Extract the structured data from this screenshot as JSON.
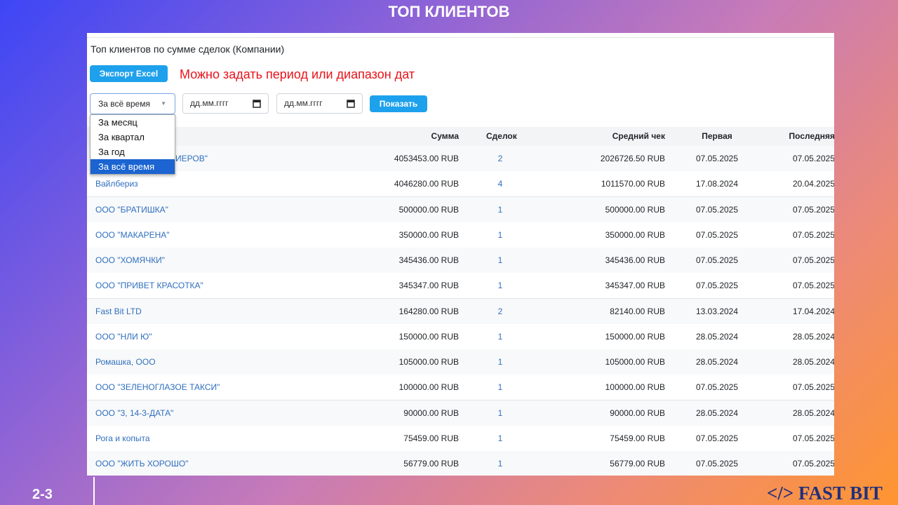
{
  "header": {
    "title": "ТОП КЛИЕНТОВ"
  },
  "panel": {
    "heading": "Топ клиентов по сумме сделок (Компании)",
    "export_button": "Экспорт Excel",
    "hint": "Можно задать период или диапазон дат",
    "period_select": "За всё время",
    "date_from": "дд.мм.гггг",
    "date_to": "дд.мм.гггг",
    "show_button": "Показать",
    "dropdown": {
      "options": [
        "За месяц",
        "За квартал",
        "За год",
        "За всё время"
      ],
      "selected": 3
    }
  },
  "table": {
    "columns": {
      "sum": "Сумма",
      "deals": "Сделок",
      "avg": "Средний чек",
      "first": "Первая",
      "last": "Последняя"
    },
    "rows": [
      {
        "name": "ИЕРОВ\"",
        "sum": "4053453.00 RUB",
        "deals": "2",
        "avg": "2026726.50 RUB",
        "first": "07.05.2025",
        "last": "07.05.2025"
      },
      {
        "name": "Вайлбериз",
        "sum": "4046280.00 RUB",
        "deals": "4",
        "avg": "1011570.00 RUB",
        "first": "17.08.2024",
        "last": "20.04.2025"
      },
      {
        "name": "ООО \"БРАТИШКА\"",
        "sum": "500000.00 RUB",
        "deals": "1",
        "avg": "500000.00 RUB",
        "first": "07.05.2025",
        "last": "07.05.2025"
      },
      {
        "name": "ООО \"МАКАРЕНА\"",
        "sum": "350000.00 RUB",
        "deals": "1",
        "avg": "350000.00 RUB",
        "first": "07.05.2025",
        "last": "07.05.2025"
      },
      {
        "name": "ООО \"ХОМЯЧКИ\"",
        "sum": "345436.00 RUB",
        "deals": "1",
        "avg": "345436.00 RUB",
        "first": "07.05.2025",
        "last": "07.05.2025"
      },
      {
        "name": "ООО \"ПРИВЕТ КРАСОТКА\"",
        "sum": "345347.00 RUB",
        "deals": "1",
        "avg": "345347.00 RUB",
        "first": "07.05.2025",
        "last": "07.05.2025"
      },
      {
        "name": "Fast Bit LTD",
        "sum": "164280.00 RUB",
        "deals": "2",
        "avg": "82140.00 RUB",
        "first": "13.03.2024",
        "last": "17.04.2024"
      },
      {
        "name": "ООО \"НЛИ Ю\"",
        "sum": "150000.00 RUB",
        "deals": "1",
        "avg": "150000.00 RUB",
        "first": "28.05.2024",
        "last": "28.05.2024"
      },
      {
        "name": "Ромашка, ООО",
        "sum": "105000.00 RUB",
        "deals": "1",
        "avg": "105000.00 RUB",
        "first": "28.05.2024",
        "last": "28.05.2024"
      },
      {
        "name": "ООО \"ЗЕЛЕНОГЛАЗОЕ ТАКСИ\"",
        "sum": "100000.00 RUB",
        "deals": "1",
        "avg": "100000.00 RUB",
        "first": "07.05.2025",
        "last": "07.05.2025"
      },
      {
        "name": "ООО \"3, 14-3-ДАТА\"",
        "sum": "90000.00 RUB",
        "deals": "1",
        "avg": "90000.00 RUB",
        "first": "28.05.2024",
        "last": "28.05.2024"
      },
      {
        "name": "Рога и копыта",
        "sum": "75459.00 RUB",
        "deals": "1",
        "avg": "75459.00 RUB",
        "first": "07.05.2025",
        "last": "07.05.2025"
      },
      {
        "name": "ООО \"ЖИТЬ ХОРОШО\"",
        "sum": "56779.00 RUB",
        "deals": "1",
        "avg": "56779.00 RUB",
        "first": "07.05.2025",
        "last": "07.05.2025"
      }
    ]
  },
  "footer": {
    "page": "2-3",
    "brand": "</> FAST BIT"
  }
}
